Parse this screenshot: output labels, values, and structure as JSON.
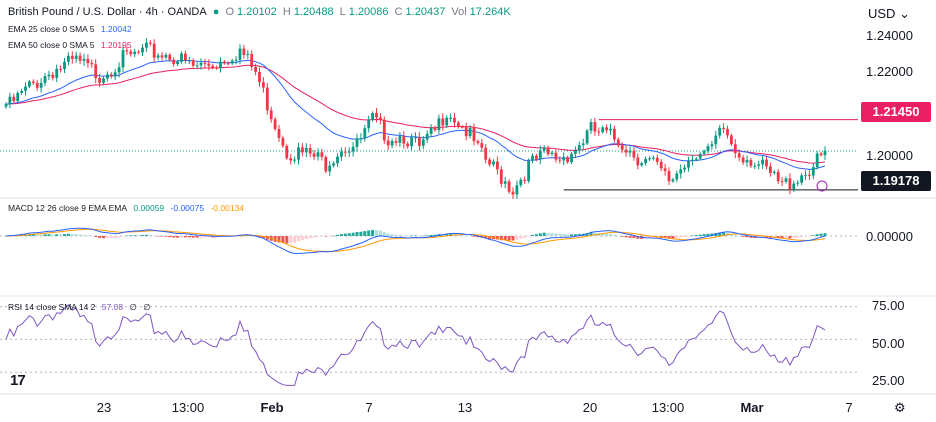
{
  "header": {
    "symbol": "British Pound / U.S. Dollar · 4h · OANDA",
    "o_label": "O",
    "o_value": "1.20102",
    "h_label": "H",
    "h_value": "1.20488",
    "l_label": "L",
    "l_value": "1.20086",
    "c_label": "C",
    "c_value": "1.20437",
    "vol_label": "Vol",
    "vol_value": "17.264K"
  },
  "currency_label": "USD",
  "ema25_legend": {
    "text": "EMA 25 close 0 SMA 5",
    "value": "1.20042"
  },
  "ema50_legend": {
    "text": "EMA 50 close 0 SMA 5",
    "value": "1.20195"
  },
  "macd_legend": {
    "text": "MACD 12 26 close 9 EMA EMA",
    "v1": "0.00059",
    "v2": "-0.00075",
    "v3": "-0.00134"
  },
  "rsi_legend": {
    "text": "RSI 14 close SMA 14 2",
    "v1": "57.08",
    "v2": "∅",
    "v3": "∅"
  },
  "colors": {
    "up": "#089981",
    "down": "#f23645",
    "ema25": "#2962ff",
    "ema50": "#e91e63",
    "resistance": "#e91e63",
    "support": "#131722",
    "macd_line": "#2962ff",
    "signal_line": "#ff9800",
    "rsi_line": "#7e57c2",
    "hist_up": "#26a69a",
    "hist_up_light": "#b2dfdb",
    "hist_down": "#ef5350",
    "hist_down_light": "#ffcdd2"
  },
  "price_axis": {
    "ticks": [
      "1.24000",
      "1.22000",
      "1.20000"
    ]
  },
  "macd_axis": {
    "ticks": [
      "0.00000"
    ]
  },
  "rsi_axis": {
    "ticks": [
      "75.00",
      "50.00",
      "25.00"
    ]
  },
  "time_axis": {
    "ticks": [
      "23",
      "13:00",
      "Feb",
      "7",
      "13",
      "20",
      "13:00",
      "Mar",
      "7"
    ]
  },
  "price_tags": {
    "resistance": "1.21450",
    "support": "1.19178"
  },
  "chart_data": {
    "type": "candlestick",
    "price_range": [
      1.1898,
      1.2474
    ],
    "resistance_level": 1.2145,
    "support_level": 1.19178,
    "last_close": 1.20437,
    "anchors": [
      {
        "i": 0,
        "p": 1.2195
      },
      {
        "i": 6,
        "p": 1.2265
      },
      {
        "i": 12,
        "p": 1.232
      },
      {
        "i": 18,
        "p": 1.2348
      },
      {
        "i": 24,
        "p": 1.2305
      },
      {
        "i": 30,
        "p": 1.2355
      },
      {
        "i": 36,
        "p": 1.238
      },
      {
        "i": 42,
        "p": 1.237
      },
      {
        "i": 48,
        "p": 1.233
      },
      {
        "i": 54,
        "p": 1.2345
      },
      {
        "i": 60,
        "p": 1.2385
      },
      {
        "i": 64,
        "p": 1.2312
      },
      {
        "i": 68,
        "p": 1.218
      },
      {
        "i": 72,
        "p": 1.206
      },
      {
        "i": 78,
        "p": 1.2045
      },
      {
        "i": 82,
        "p": 1.202
      },
      {
        "i": 86,
        "p": 1.2072
      },
      {
        "i": 90,
        "p": 1.2075
      },
      {
        "i": 94,
        "p": 1.2158
      },
      {
        "i": 98,
        "p": 1.2105
      },
      {
        "i": 102,
        "p": 1.211
      },
      {
        "i": 106,
        "p": 1.2065
      },
      {
        "i": 110,
        "p": 1.212
      },
      {
        "i": 113,
        "p": 1.2195
      },
      {
        "i": 118,
        "p": 1.2125
      },
      {
        "i": 122,
        "p": 1.204
      },
      {
        "i": 126,
        "p": 1.199
      },
      {
        "i": 130,
        "p": 1.1935
      },
      {
        "i": 134,
        "p": 1.201
      },
      {
        "i": 138,
        "p": 1.2045
      },
      {
        "i": 142,
        "p": 1.2035
      },
      {
        "i": 146,
        "p": 1.2065
      },
      {
        "i": 150,
        "p": 1.2125
      },
      {
        "i": 154,
        "p": 1.211
      },
      {
        "i": 158,
        "p": 1.2085
      },
      {
        "i": 162,
        "p": 1.204
      },
      {
        "i": 166,
        "p": 1.2015
      },
      {
        "i": 170,
        "p": 1.196
      },
      {
        "i": 174,
        "p": 1.202
      },
      {
        "i": 176,
        "p": 1.2055
      },
      {
        "i": 180,
        "p": 1.2045
      },
      {
        "i": 184,
        "p": 1.213
      },
      {
        "i": 187,
        "p": 1.206
      },
      {
        "i": 191,
        "p": 1.2035
      },
      {
        "i": 195,
        "p": 1.199
      },
      {
        "i": 199,
        "p": 1.1945
      },
      {
        "i": 203,
        "p": 1.1975
      },
      {
        "i": 207,
        "p": 1.201
      },
      {
        "i": 210,
        "p": 1.2044
      }
    ]
  }
}
